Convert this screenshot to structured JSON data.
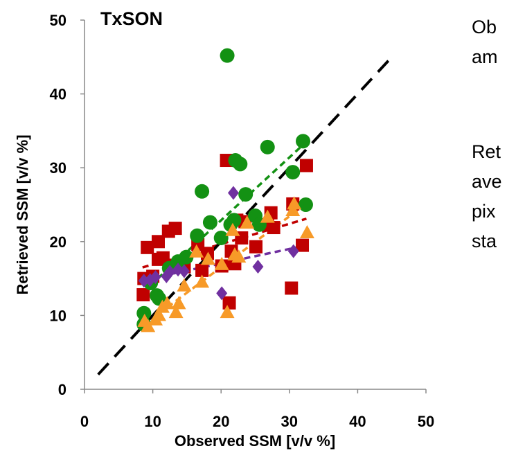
{
  "chart_data": {
    "type": "scatter",
    "title": "TxSON",
    "xlabel": "Observed SSM [v/v %]",
    "ylabel": "Retrieved SSM [v/v %]",
    "xlim": [
      0,
      50
    ],
    "ylim": [
      0,
      50
    ],
    "xticks": [
      "0",
      "10",
      "20",
      "30",
      "40",
      "50"
    ],
    "yticks": [
      "0",
      "10",
      "20",
      "30",
      "40",
      "50"
    ],
    "grid": false,
    "legend": "none",
    "annotations": [
      [
        "Ob",
        "am"
      ],
      [
        "Ret",
        "ave",
        "pix",
        "sta"
      ]
    ],
    "one_to_one_line": {
      "x": [
        2,
        45
      ],
      "y": [
        2,
        45
      ],
      "color": "#000000",
      "style": "dashed"
    },
    "series": [
      {
        "marker": "square",
        "color": "#C00000",
        "points": [
          [
            8.7,
            15.0
          ],
          [
            8.6,
            12.8
          ],
          [
            9.2,
            19.2
          ],
          [
            10.0,
            15.3
          ],
          [
            10.8,
            17.6
          ],
          [
            10.8,
            20.0
          ],
          [
            11.5,
            17.8
          ],
          [
            12.3,
            21.4
          ],
          [
            12.9,
            16.8
          ],
          [
            13.3,
            21.8
          ],
          [
            14.6,
            16.6
          ],
          [
            16.6,
            19.6
          ],
          [
            17.2,
            16.1
          ],
          [
            18.0,
            18.4
          ],
          [
            20.1,
            16.7
          ],
          [
            20.8,
            31.0
          ],
          [
            21.2,
            11.7
          ],
          [
            21.5,
            18.7
          ],
          [
            22.0,
            17.0
          ],
          [
            22.3,
            22.9
          ],
          [
            23.0,
            20.5
          ],
          [
            23.5,
            22.7
          ],
          [
            25.1,
            19.3
          ],
          [
            26.8,
            22.3
          ],
          [
            27.3,
            23.9
          ],
          [
            27.7,
            21.9
          ],
          [
            30.3,
            13.7
          ],
          [
            30.5,
            25.1
          ],
          [
            31.9,
            19.5
          ],
          [
            32.5,
            30.3
          ]
        ],
        "trend": {
          "x": [
            8.5,
            32.5
          ],
          "y": [
            16.5,
            23.1
          ],
          "color": "#C00000"
        }
      },
      {
        "marker": "circle",
        "color": "#139113",
        "points": [
          [
            8.7,
            10.3
          ],
          [
            8.7,
            8.8
          ],
          [
            9.7,
            14.4
          ],
          [
            10.6,
            12.7
          ],
          [
            10.9,
            12.3
          ],
          [
            12.4,
            16.4
          ],
          [
            13.7,
            17.3
          ],
          [
            14.9,
            17.9
          ],
          [
            16.5,
            20.8
          ],
          [
            17.2,
            26.8
          ],
          [
            18.4,
            22.6
          ],
          [
            20.0,
            20.5
          ],
          [
            20.9,
            45.2
          ],
          [
            21.4,
            22.3
          ],
          [
            21.9,
            22.9
          ],
          [
            22.1,
            31.0
          ],
          [
            22.8,
            30.5
          ],
          [
            23.6,
            26.4
          ],
          [
            25.0,
            23.5
          ],
          [
            25.6,
            22.3
          ],
          [
            26.8,
            32.8
          ],
          [
            30.5,
            29.4
          ],
          [
            32.0,
            33.6
          ],
          [
            32.4,
            25.0
          ]
        ],
        "trend": {
          "x": [
            8.5,
            32.0
          ],
          "y": [
            13.1,
            33.1
          ],
          "color": "#139113"
        }
      },
      {
        "marker": "triangle",
        "color": "#F79A28",
        "points": [
          [
            8.8,
            9.2
          ],
          [
            9.3,
            8.5
          ],
          [
            10.4,
            9.4
          ],
          [
            10.9,
            10.0
          ],
          [
            11.4,
            11.1
          ],
          [
            12.1,
            11.6
          ],
          [
            13.4,
            10.4
          ],
          [
            13.8,
            11.6
          ],
          [
            14.6,
            14.0
          ],
          [
            16.4,
            18.6
          ],
          [
            17.2,
            14.5
          ],
          [
            18.1,
            17.6
          ],
          [
            20.1,
            16.9
          ],
          [
            20.9,
            10.4
          ],
          [
            21.7,
            21.5
          ],
          [
            22.0,
            18.2
          ],
          [
            22.6,
            17.9
          ],
          [
            23.8,
            22.5
          ],
          [
            26.8,
            23.3
          ],
          [
            30.5,
            24.2
          ],
          [
            30.7,
            25.1
          ],
          [
            32.6,
            21.2
          ]
        ],
        "trend": {
          "x": [
            8.5,
            32.0
          ],
          "y": [
            8.6,
            24.8
          ],
          "color": "#F79A28"
        }
      },
      {
        "marker": "diamond",
        "color": "#7030A0",
        "points": [
          [
            8.7,
            14.7
          ],
          [
            9.6,
            14.8
          ],
          [
            10.4,
            15.2
          ],
          [
            12.0,
            15.3
          ],
          [
            12.5,
            15.9
          ],
          [
            13.7,
            16.2
          ],
          [
            14.6,
            16.0
          ],
          [
            20.1,
            13.0
          ],
          [
            21.8,
            26.6
          ],
          [
            25.4,
            16.6
          ],
          [
            30.6,
            18.7
          ]
        ],
        "trend": {
          "x": [
            8.5,
            31.0
          ],
          "y": [
            14.8,
            19.2
          ],
          "color": "#7030A0"
        }
      }
    ]
  }
}
